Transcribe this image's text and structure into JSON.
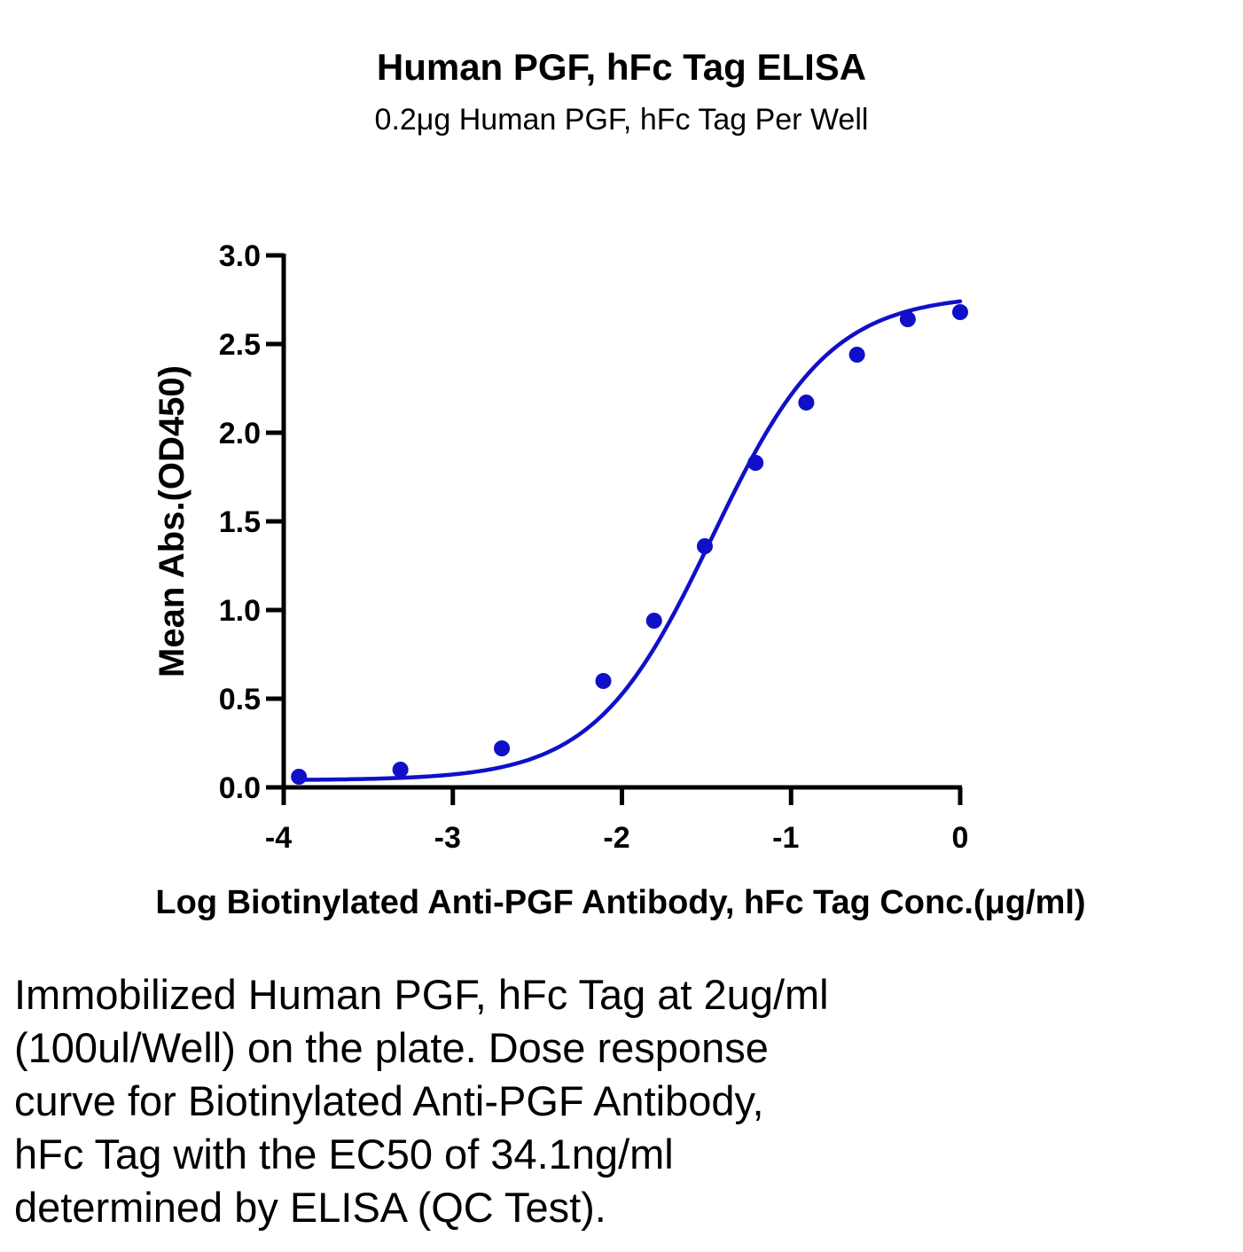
{
  "chart_data": {
    "type": "scatter",
    "title": "Human PGF, hFc Tag ELISA",
    "subtitle": "0.2μg Human PGF, hFc Tag Per Well",
    "xlabel": "Log Biotinylated Anti-PGF Antibody, hFc Tag Conc.(μg/ml)",
    "ylabel": "Mean Abs.(OD450)",
    "xlim": [
      -4,
      0
    ],
    "ylim": [
      0,
      3.0
    ],
    "xticks": [
      "-4",
      "-3",
      "-2",
      "-1",
      "0"
    ],
    "yticks": [
      "0.0",
      "0.5",
      "1.0",
      "1.5",
      "2.0",
      "2.5",
      "3.0"
    ],
    "grid": false,
    "series": [
      {
        "color": "#1010c8",
        "x": [
          -3.91,
          -3.31,
          -2.71,
          -2.11,
          -1.81,
          -1.51,
          -1.21,
          -0.91,
          -0.61,
          -0.31,
          0.0
        ],
        "y": [
          0.06,
          0.1,
          0.22,
          0.6,
          0.94,
          1.36,
          1.83,
          2.17,
          2.44,
          2.64,
          2.68
        ]
      }
    ],
    "fit_curve": {
      "model": "4PL",
      "bottom": 0.04,
      "top": 2.78,
      "log_ec50": -1.467,
      "hill": 1.25
    }
  },
  "caption": "Immobilized Human PGF, hFc Tag at 2ug/ml\n(100ul/Well) on the plate. Dose response\ncurve for Biotinylated Anti-PGF Antibody,\nhFc Tag with the EC50 of 34.1ng/ml\ndetermined by ELISA (QC Test)."
}
